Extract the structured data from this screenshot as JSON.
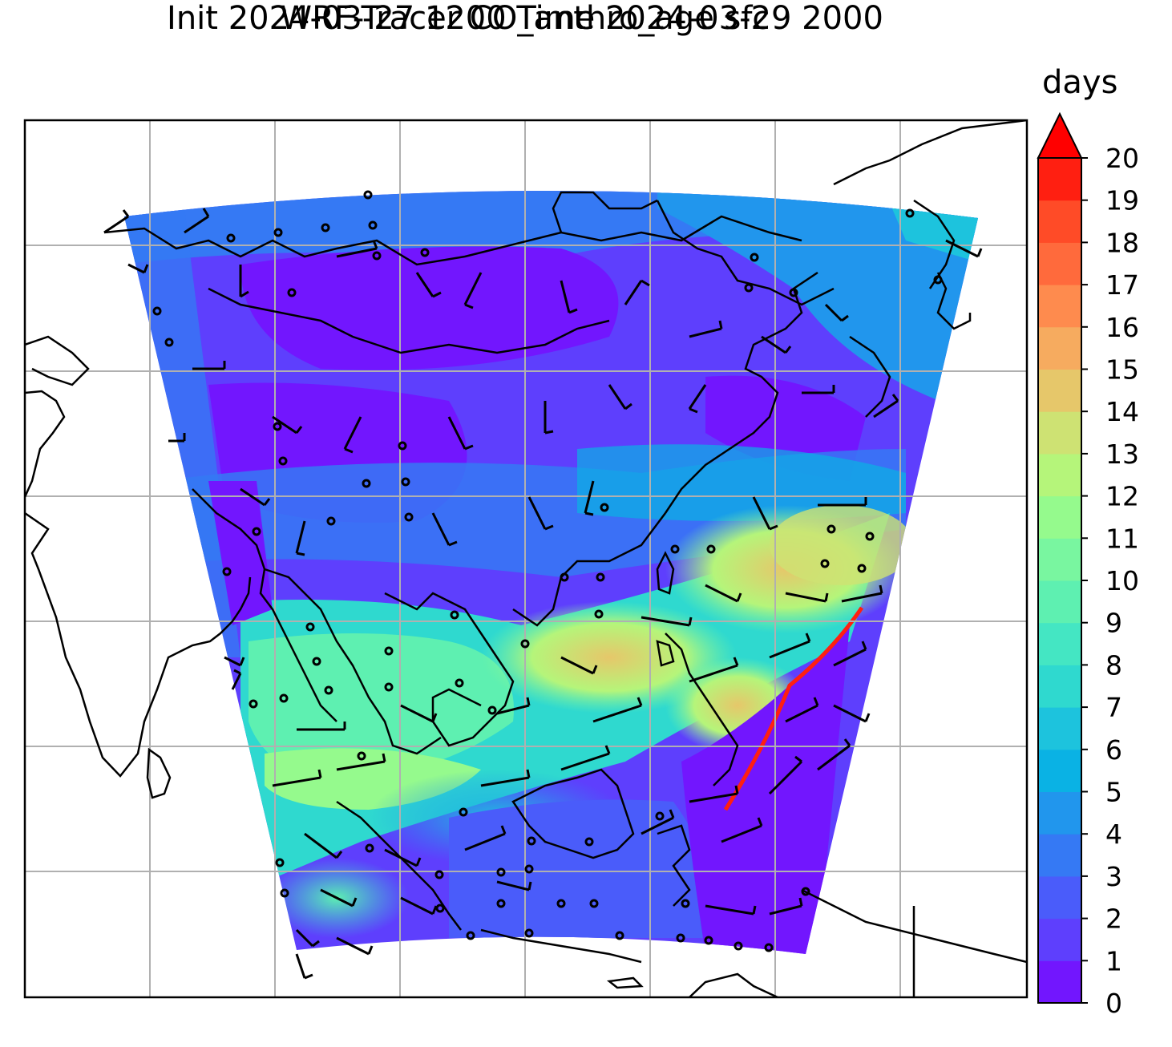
{
  "title": {
    "line1": "WRF-Tracer CO_anthro_age sfc",
    "line2": "Init 2024-03-27 1200 Time 2024-03-29 2000"
  },
  "colorbar": {
    "unit": "days",
    "ticks": [
      "0",
      "1",
      "2",
      "3",
      "4",
      "5",
      "6",
      "7",
      "8",
      "9",
      "10",
      "11",
      "12",
      "13",
      "14",
      "15",
      "16",
      "17",
      "18",
      "19",
      "20"
    ],
    "colors": [
      "#7216fe",
      "#5e3ffd",
      "#4a5cfa",
      "#3579f4",
      "#2196ed",
      "#0ab2e4",
      "#1dc3dd",
      "#2fd9cf",
      "#44e6c3",
      "#5ef0b1",
      "#79f6a0",
      "#95fa8d",
      "#b5f57a",
      "#cee273",
      "#e6c76a",
      "#f6ab5f",
      "#fe8b4e",
      "#ff6a3c",
      "#ff4b27",
      "#ff1f11"
    ],
    "extend": "max",
    "extend_color": "#ff0000",
    "range": [
      0,
      20
    ]
  },
  "map": {
    "gridlines": true,
    "projection_outline": "trapezoid",
    "features": [
      "coastlines",
      "borders",
      "wind-barbs",
      "calm-circles"
    ]
  }
}
